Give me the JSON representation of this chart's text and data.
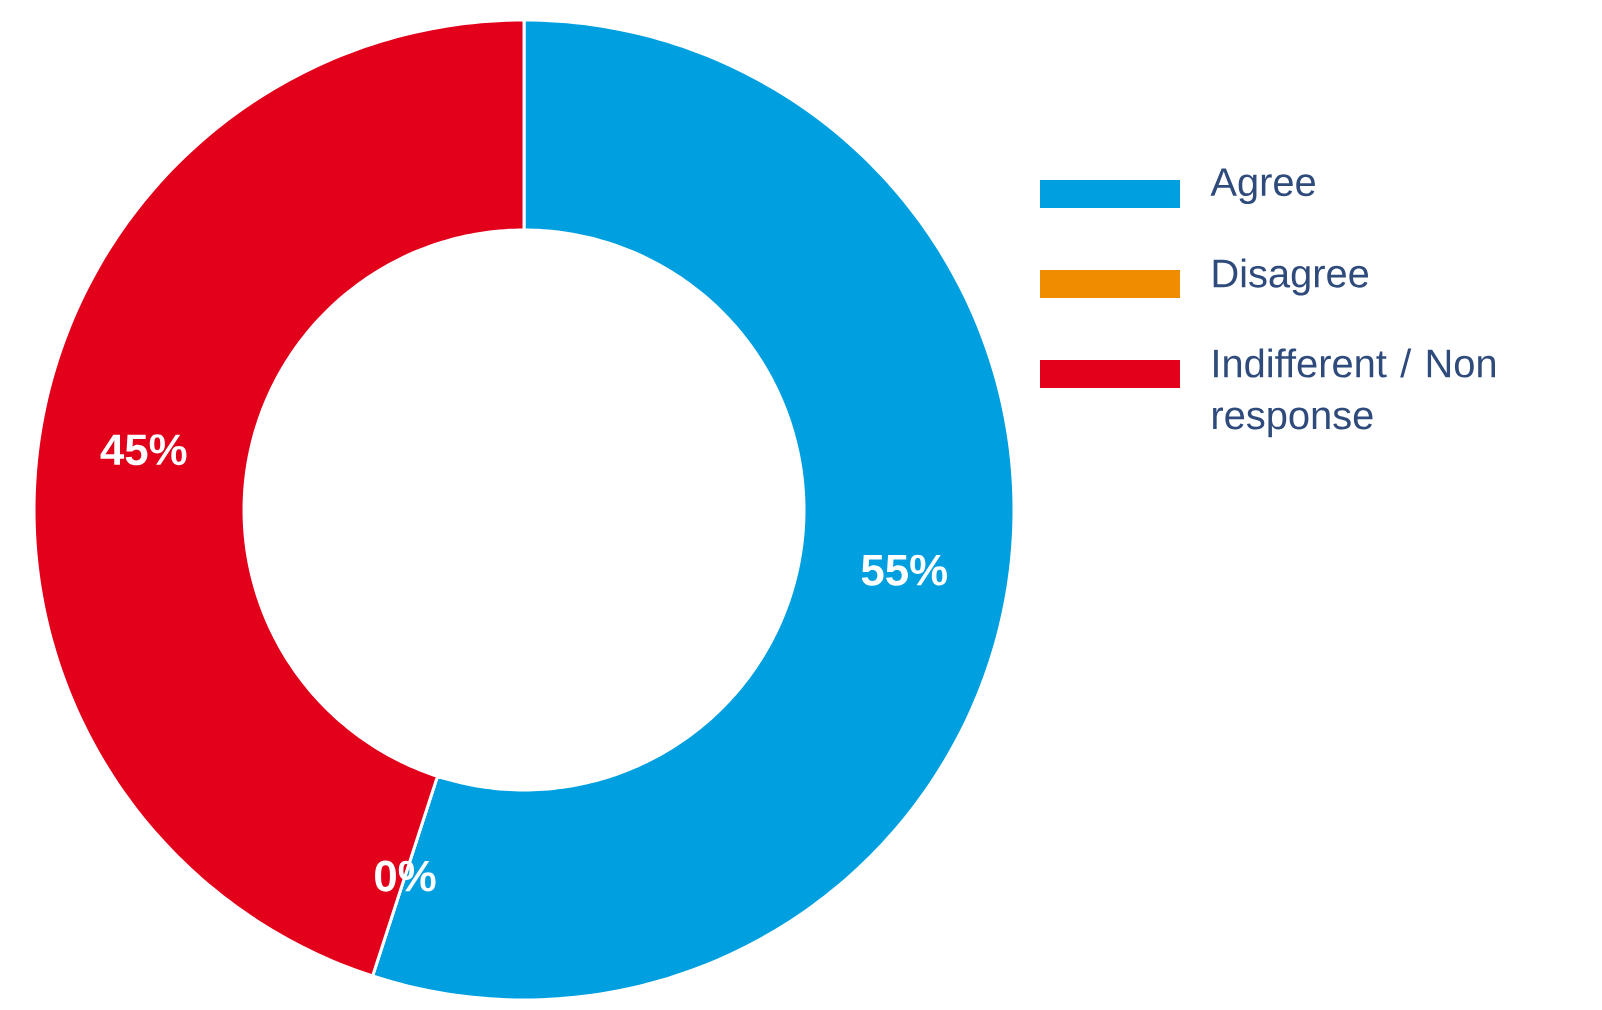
{
  "chart_data": {
    "type": "donut",
    "categories": [
      "Agree",
      "Disagree",
      "Indifferent / Non response"
    ],
    "values": [
      55,
      0,
      45
    ],
    "colors": [
      "#009fe0",
      "#f08c00",
      "#e2001a"
    ],
    "value_labels": [
      "55%",
      "0%",
      "45%"
    ],
    "legend": "right"
  }
}
